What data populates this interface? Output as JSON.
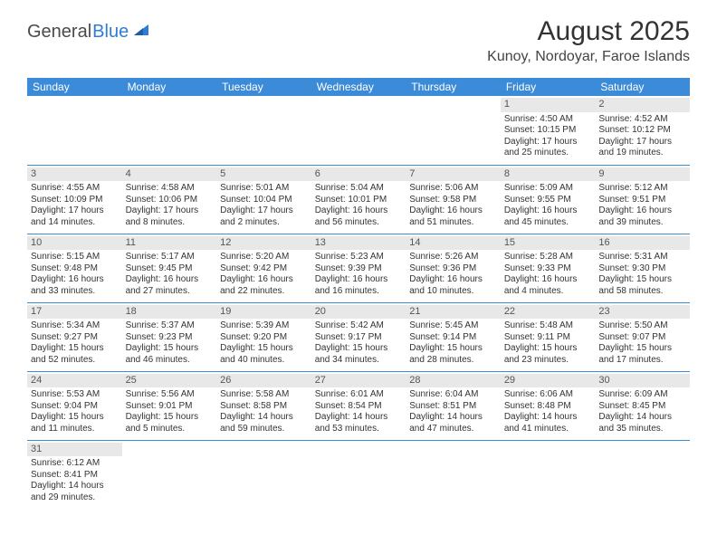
{
  "logo": {
    "text1": "General",
    "text2": "Blue"
  },
  "title": "August 2025",
  "location": "Kunoy, Nordoyar, Faroe Islands",
  "colors": {
    "header_bg": "#3b8bd8",
    "header_text": "#ffffff",
    "daybar_bg": "#e8e8e8",
    "border": "#3b8bd8",
    "text": "#333333",
    "logo_gray": "#4a4a4a",
    "logo_blue": "#2e7cd6"
  },
  "weekdays": [
    "Sunday",
    "Monday",
    "Tuesday",
    "Wednesday",
    "Thursday",
    "Friday",
    "Saturday"
  ],
  "weeks": [
    [
      null,
      null,
      null,
      null,
      null,
      {
        "n": "1",
        "sr": "Sunrise: 4:50 AM",
        "ss": "Sunset: 10:15 PM",
        "d1": "Daylight: 17 hours",
        "d2": "and 25 minutes."
      },
      {
        "n": "2",
        "sr": "Sunrise: 4:52 AM",
        "ss": "Sunset: 10:12 PM",
        "d1": "Daylight: 17 hours",
        "d2": "and 19 minutes."
      }
    ],
    [
      {
        "n": "3",
        "sr": "Sunrise: 4:55 AM",
        "ss": "Sunset: 10:09 PM",
        "d1": "Daylight: 17 hours",
        "d2": "and 14 minutes."
      },
      {
        "n": "4",
        "sr": "Sunrise: 4:58 AM",
        "ss": "Sunset: 10:06 PM",
        "d1": "Daylight: 17 hours",
        "d2": "and 8 minutes."
      },
      {
        "n": "5",
        "sr": "Sunrise: 5:01 AM",
        "ss": "Sunset: 10:04 PM",
        "d1": "Daylight: 17 hours",
        "d2": "and 2 minutes."
      },
      {
        "n": "6",
        "sr": "Sunrise: 5:04 AM",
        "ss": "Sunset: 10:01 PM",
        "d1": "Daylight: 16 hours",
        "d2": "and 56 minutes."
      },
      {
        "n": "7",
        "sr": "Sunrise: 5:06 AM",
        "ss": "Sunset: 9:58 PM",
        "d1": "Daylight: 16 hours",
        "d2": "and 51 minutes."
      },
      {
        "n": "8",
        "sr": "Sunrise: 5:09 AM",
        "ss": "Sunset: 9:55 PM",
        "d1": "Daylight: 16 hours",
        "d2": "and 45 minutes."
      },
      {
        "n": "9",
        "sr": "Sunrise: 5:12 AM",
        "ss": "Sunset: 9:51 PM",
        "d1": "Daylight: 16 hours",
        "d2": "and 39 minutes."
      }
    ],
    [
      {
        "n": "10",
        "sr": "Sunrise: 5:15 AM",
        "ss": "Sunset: 9:48 PM",
        "d1": "Daylight: 16 hours",
        "d2": "and 33 minutes."
      },
      {
        "n": "11",
        "sr": "Sunrise: 5:17 AM",
        "ss": "Sunset: 9:45 PM",
        "d1": "Daylight: 16 hours",
        "d2": "and 27 minutes."
      },
      {
        "n": "12",
        "sr": "Sunrise: 5:20 AM",
        "ss": "Sunset: 9:42 PM",
        "d1": "Daylight: 16 hours",
        "d2": "and 22 minutes."
      },
      {
        "n": "13",
        "sr": "Sunrise: 5:23 AM",
        "ss": "Sunset: 9:39 PM",
        "d1": "Daylight: 16 hours",
        "d2": "and 16 minutes."
      },
      {
        "n": "14",
        "sr": "Sunrise: 5:26 AM",
        "ss": "Sunset: 9:36 PM",
        "d1": "Daylight: 16 hours",
        "d2": "and 10 minutes."
      },
      {
        "n": "15",
        "sr": "Sunrise: 5:28 AM",
        "ss": "Sunset: 9:33 PM",
        "d1": "Daylight: 16 hours",
        "d2": "and 4 minutes."
      },
      {
        "n": "16",
        "sr": "Sunrise: 5:31 AM",
        "ss": "Sunset: 9:30 PM",
        "d1": "Daylight: 15 hours",
        "d2": "and 58 minutes."
      }
    ],
    [
      {
        "n": "17",
        "sr": "Sunrise: 5:34 AM",
        "ss": "Sunset: 9:27 PM",
        "d1": "Daylight: 15 hours",
        "d2": "and 52 minutes."
      },
      {
        "n": "18",
        "sr": "Sunrise: 5:37 AM",
        "ss": "Sunset: 9:23 PM",
        "d1": "Daylight: 15 hours",
        "d2": "and 46 minutes."
      },
      {
        "n": "19",
        "sr": "Sunrise: 5:39 AM",
        "ss": "Sunset: 9:20 PM",
        "d1": "Daylight: 15 hours",
        "d2": "and 40 minutes."
      },
      {
        "n": "20",
        "sr": "Sunrise: 5:42 AM",
        "ss": "Sunset: 9:17 PM",
        "d1": "Daylight: 15 hours",
        "d2": "and 34 minutes."
      },
      {
        "n": "21",
        "sr": "Sunrise: 5:45 AM",
        "ss": "Sunset: 9:14 PM",
        "d1": "Daylight: 15 hours",
        "d2": "and 28 minutes."
      },
      {
        "n": "22",
        "sr": "Sunrise: 5:48 AM",
        "ss": "Sunset: 9:11 PM",
        "d1": "Daylight: 15 hours",
        "d2": "and 23 minutes."
      },
      {
        "n": "23",
        "sr": "Sunrise: 5:50 AM",
        "ss": "Sunset: 9:07 PM",
        "d1": "Daylight: 15 hours",
        "d2": "and 17 minutes."
      }
    ],
    [
      {
        "n": "24",
        "sr": "Sunrise: 5:53 AM",
        "ss": "Sunset: 9:04 PM",
        "d1": "Daylight: 15 hours",
        "d2": "and 11 minutes."
      },
      {
        "n": "25",
        "sr": "Sunrise: 5:56 AM",
        "ss": "Sunset: 9:01 PM",
        "d1": "Daylight: 15 hours",
        "d2": "and 5 minutes."
      },
      {
        "n": "26",
        "sr": "Sunrise: 5:58 AM",
        "ss": "Sunset: 8:58 PM",
        "d1": "Daylight: 14 hours",
        "d2": "and 59 minutes."
      },
      {
        "n": "27",
        "sr": "Sunrise: 6:01 AM",
        "ss": "Sunset: 8:54 PM",
        "d1": "Daylight: 14 hours",
        "d2": "and 53 minutes."
      },
      {
        "n": "28",
        "sr": "Sunrise: 6:04 AM",
        "ss": "Sunset: 8:51 PM",
        "d1": "Daylight: 14 hours",
        "d2": "and 47 minutes."
      },
      {
        "n": "29",
        "sr": "Sunrise: 6:06 AM",
        "ss": "Sunset: 8:48 PM",
        "d1": "Daylight: 14 hours",
        "d2": "and 41 minutes."
      },
      {
        "n": "30",
        "sr": "Sunrise: 6:09 AM",
        "ss": "Sunset: 8:45 PM",
        "d1": "Daylight: 14 hours",
        "d2": "and 35 minutes."
      }
    ],
    [
      {
        "n": "31",
        "sr": "Sunrise: 6:12 AM",
        "ss": "Sunset: 8:41 PM",
        "d1": "Daylight: 14 hours",
        "d2": "and 29 minutes."
      },
      null,
      null,
      null,
      null,
      null,
      null
    ]
  ]
}
